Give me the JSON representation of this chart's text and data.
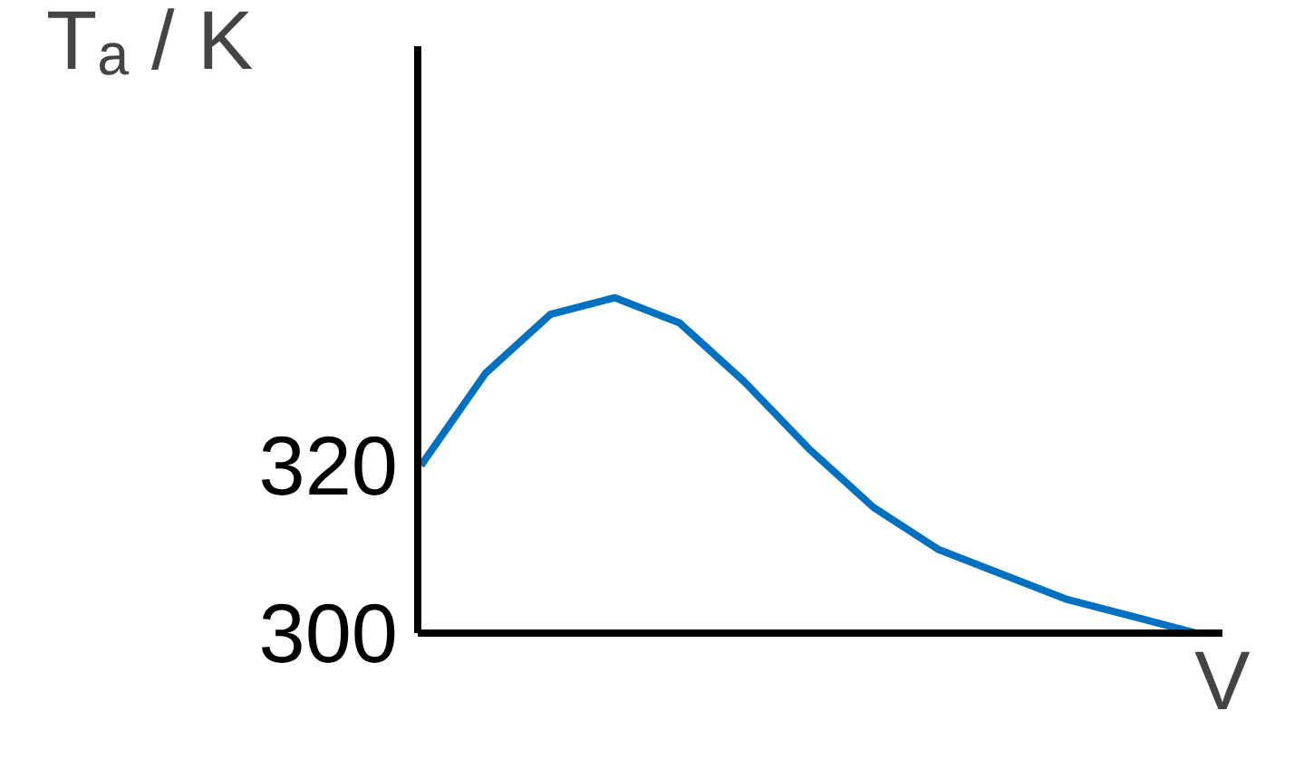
{
  "chart_data": {
    "type": "line",
    "ylabel": "Tₐ / K",
    "xlabel": "V",
    "categories": [
      null,
      null,
      null,
      null,
      null,
      null,
      null,
      null,
      null,
      null,
      null,
      null,
      null
    ],
    "series": [
      {
        "color": "#0070c0",
        "values": [
          320,
          331,
          338,
          340,
          337,
          330,
          322,
          315,
          310,
          307,
          304,
          302,
          300
        ]
      }
    ],
    "ylim": [
      300,
      370
    ],
    "yticks": [
      300,
      320
    ],
    "grid": false,
    "tick_labels": "y",
    "marker": "none",
    "line_style": "solid"
  }
}
